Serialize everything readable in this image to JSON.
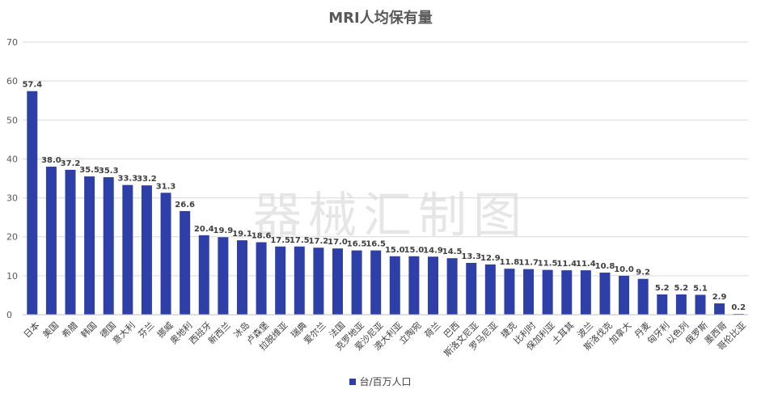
{
  "chart_data": {
    "type": "bar",
    "title": "MRI人均保有量",
    "xlabel": "",
    "ylabel": "",
    "ylim": [
      0,
      70
    ],
    "yticks": [
      0,
      10,
      20,
      30,
      40,
      50,
      60,
      70
    ],
    "grid": "horizontal",
    "legend_position": "bottom",
    "bar_color": "#2E3FA8",
    "categories": [
      "日本",
      "美国",
      "希腊",
      "韩国",
      "德国",
      "意大利",
      "芬兰",
      "挪威",
      "奥地利",
      "西班牙",
      "新西兰",
      "冰岛",
      "卢森堡",
      "拉脱维亚",
      "瑞典",
      "爱尔兰",
      "法国",
      "克罗地亚",
      "爱沙尼亚",
      "澳大利亚",
      "立陶宛",
      "荷兰",
      "巴西",
      "斯洛文尼亚",
      "罗马尼亚",
      "捷克",
      "比利时",
      "保加利亚",
      "土耳其",
      "波兰",
      "斯洛伐克",
      "加拿大",
      "丹麦",
      "匈牙利",
      "以色列",
      "俄罗斯",
      "墨西哥",
      "哥伦比亚"
    ],
    "series": [
      {
        "name": "台/百万人口",
        "values": [
          57.4,
          38.0,
          37.2,
          35.5,
          35.3,
          33.3,
          33.2,
          31.3,
          26.6,
          20.4,
          19.9,
          19.1,
          18.6,
          17.5,
          17.5,
          17.2,
          17.0,
          16.5,
          16.5,
          15.0,
          15.0,
          14.9,
          14.5,
          13.3,
          12.9,
          11.8,
          11.7,
          11.5,
          11.4,
          11.4,
          10.8,
          10.0,
          9.2,
          5.2,
          5.2,
          5.1,
          2.9,
          0.2
        ],
        "labels": [
          "57.4",
          "38.0",
          "37.2",
          "35.5",
          "35.3",
          "33.3",
          "33.2",
          "31.3",
          "26.6",
          "20.4",
          "19.9",
          "19.1",
          "18.6",
          "17.5",
          "17.5",
          "17.2",
          "17.0",
          "16.5",
          "16.5",
          "15.0",
          "15.0",
          "14.9",
          "14.5",
          "13.3",
          "12.9",
          "11.8",
          "11.7",
          "11.5",
          "11.4",
          "11.4",
          "10.8",
          "10.0",
          "9.2",
          "5.2",
          "5.2",
          "5.1",
          "2.9",
          "0.2"
        ]
      }
    ]
  },
  "watermark": "器械汇制图"
}
